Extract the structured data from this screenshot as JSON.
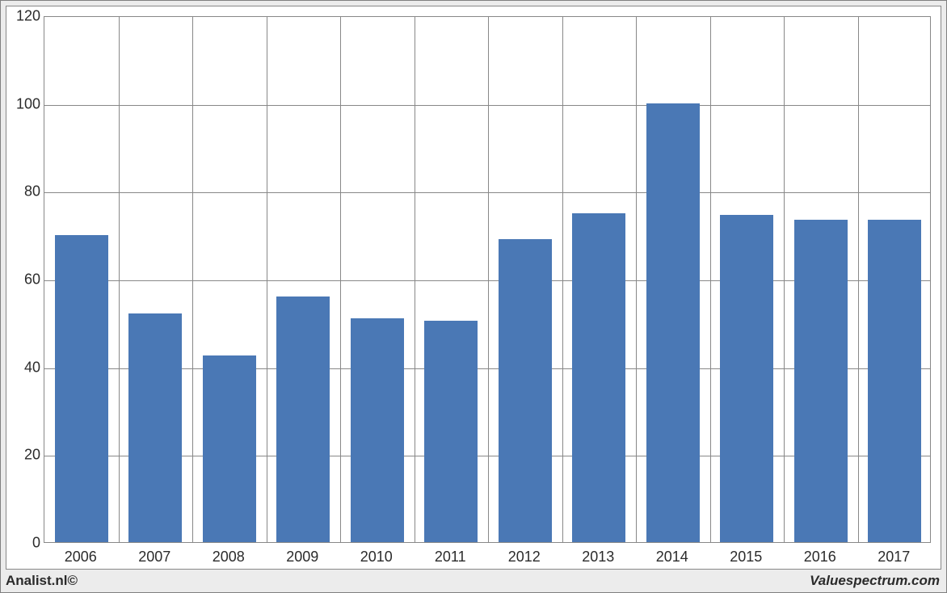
{
  "chart": {
    "type": "bar",
    "categories": [
      "2006",
      "2007",
      "2008",
      "2009",
      "2010",
      "2011",
      "2012",
      "2013",
      "2014",
      "2015",
      "2016",
      "2017"
    ],
    "values": [
      70,
      52,
      42.5,
      56,
      51,
      50.5,
      69,
      75,
      100,
      74.5,
      73.5,
      73.5
    ],
    "bar_color": "#4a78b5",
    "background_color": "#ffffff",
    "grid_color": "#888888",
    "outer_background": "#ececec",
    "ylim": [
      0,
      120
    ],
    "ytick_step": 20,
    "yticks": [
      0,
      20,
      40,
      60,
      80,
      100,
      120
    ],
    "tick_fontsize": 18,
    "tick_color": "#2b2b2b",
    "bar_width_ratio": 0.72
  },
  "footer": {
    "left": "Analist.nl©",
    "right": "Valuespectrum.com"
  }
}
